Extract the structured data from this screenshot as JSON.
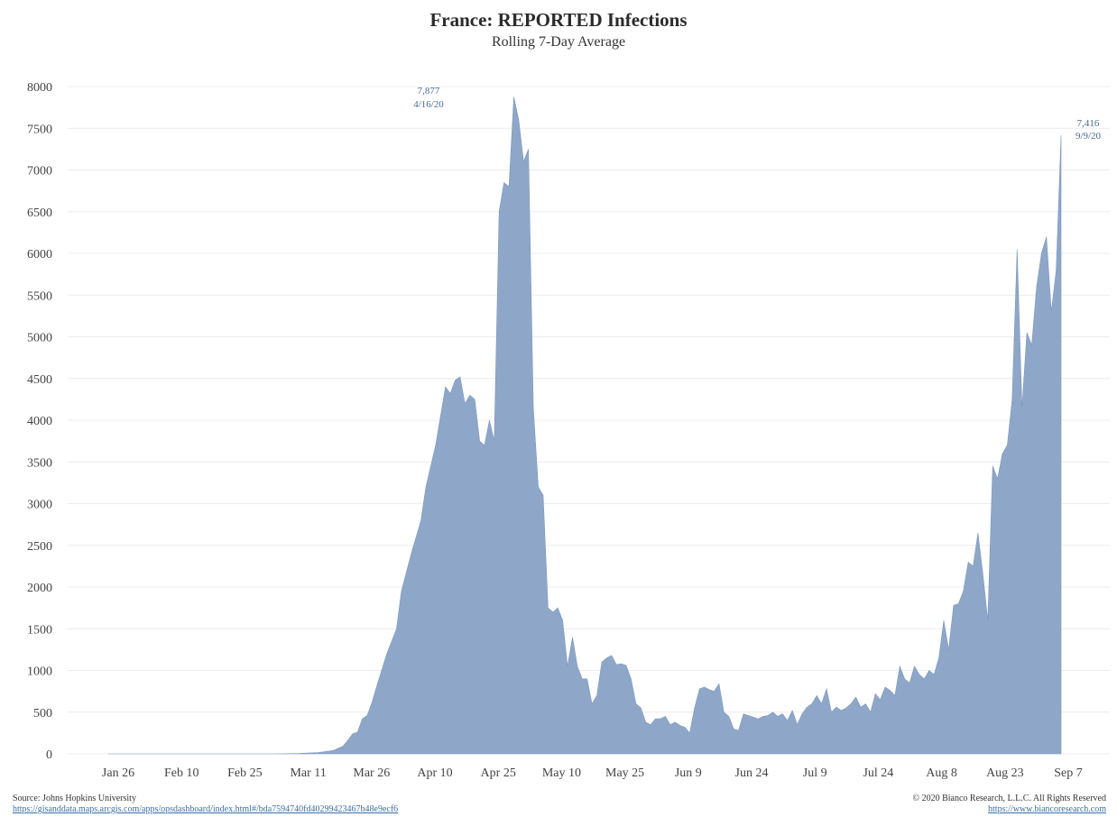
{
  "chart_data": {
    "type": "area",
    "title": "France: REPORTED Infections",
    "subtitle": "Rolling 7-Day Average",
    "xlabel": "",
    "ylabel": "",
    "ylim": [
      0,
      8000
    ],
    "yticks": [
      0,
      500,
      1000,
      1500,
      2000,
      2500,
      3000,
      3500,
      4000,
      4500,
      5000,
      5500,
      6000,
      6500,
      7000,
      7500,
      8000
    ],
    "xticks": [
      "Jan 26",
      "Feb 10",
      "Feb 25",
      "Mar 11",
      "Mar 26",
      "Apr 10",
      "Apr 25",
      "May 10",
      "May 25",
      "Jun 9",
      "Jun 24",
      "Jul 9",
      "Jul 24",
      "Aug 8",
      "Aug 23",
      "Sep 7"
    ],
    "grid": true,
    "fill_color": "#8ea7c9",
    "annotations": [
      {
        "value": "7,877",
        "date": "4/16/20"
      },
      {
        "value": "7,416",
        "date": "9/9/20"
      }
    ],
    "series": [
      {
        "values": [
          [
            1,
            0
          ],
          [
            35,
            0
          ],
          [
            40,
            5
          ],
          [
            44,
            15
          ],
          [
            47,
            40
          ],
          [
            49,
            90
          ],
          [
            50,
            160
          ],
          [
            51,
            240
          ],
          [
            52,
            260
          ],
          [
            53,
            420
          ],
          [
            54,
            460
          ],
          [
            55,
            620
          ],
          [
            56,
            820
          ],
          [
            58,
            1200
          ],
          [
            60,
            1500
          ],
          [
            61,
            1950
          ],
          [
            63,
            2400
          ],
          [
            65,
            2800
          ],
          [
            66,
            3200
          ],
          [
            68,
            3700
          ],
          [
            70,
            4400
          ],
          [
            71,
            4320
          ],
          [
            72,
            4480
          ],
          [
            73,
            4520
          ],
          [
            74,
            4200
          ],
          [
            75,
            4300
          ],
          [
            76,
            4250
          ],
          [
            77,
            3750
          ],
          [
            78,
            3700
          ],
          [
            79,
            4000
          ],
          [
            80,
            3750
          ],
          [
            81,
            6500
          ],
          [
            82,
            6850
          ],
          [
            83,
            6800
          ],
          [
            84,
            7877
          ],
          [
            85,
            7600
          ],
          [
            86,
            7100
          ],
          [
            87,
            7250
          ],
          [
            88,
            4150
          ],
          [
            89,
            3200
          ],
          [
            90,
            3100
          ],
          [
            91,
            1750
          ],
          [
            92,
            1700
          ],
          [
            93,
            1750
          ],
          [
            94,
            1600
          ],
          [
            95,
            1050
          ],
          [
            96,
            1400
          ],
          [
            97,
            1050
          ],
          [
            98,
            900
          ],
          [
            99,
            900
          ],
          [
            100,
            600
          ],
          [
            101,
            700
          ],
          [
            102,
            1100
          ],
          [
            103,
            1150
          ],
          [
            104,
            1180
          ],
          [
            105,
            1070
          ],
          [
            106,
            1080
          ],
          [
            107,
            1060
          ],
          [
            108,
            900
          ],
          [
            109,
            600
          ],
          [
            110,
            550
          ],
          [
            111,
            380
          ],
          [
            112,
            350
          ],
          [
            113,
            420
          ],
          [
            114,
            420
          ],
          [
            115,
            450
          ],
          [
            116,
            350
          ],
          [
            117,
            380
          ],
          [
            118,
            340
          ],
          [
            119,
            320
          ],
          [
            120,
            250
          ],
          [
            121,
            550
          ],
          [
            122,
            780
          ],
          [
            123,
            800
          ],
          [
            124,
            770
          ],
          [
            125,
            750
          ],
          [
            126,
            840
          ],
          [
            127,
            500
          ],
          [
            128,
            450
          ],
          [
            129,
            300
          ],
          [
            130,
            280
          ],
          [
            131,
            480
          ],
          [
            132,
            460
          ],
          [
            133,
            440
          ],
          [
            134,
            420
          ],
          [
            135,
            450
          ],
          [
            136,
            460
          ],
          [
            137,
            500
          ],
          [
            138,
            450
          ],
          [
            139,
            480
          ],
          [
            140,
            400
          ],
          [
            141,
            520
          ],
          [
            142,
            350
          ],
          [
            143,
            480
          ],
          [
            144,
            560
          ],
          [
            145,
            600
          ],
          [
            146,
            700
          ],
          [
            147,
            600
          ],
          [
            148,
            780
          ],
          [
            149,
            500
          ],
          [
            150,
            560
          ],
          [
            151,
            520
          ],
          [
            152,
            550
          ],
          [
            153,
            600
          ],
          [
            154,
            680
          ],
          [
            155,
            560
          ],
          [
            156,
            600
          ],
          [
            157,
            500
          ],
          [
            158,
            720
          ],
          [
            159,
            650
          ],
          [
            160,
            800
          ],
          [
            161,
            760
          ],
          [
            162,
            700
          ],
          [
            163,
            1050
          ],
          [
            164,
            900
          ],
          [
            165,
            850
          ],
          [
            166,
            1050
          ],
          [
            167,
            950
          ],
          [
            168,
            900
          ],
          [
            169,
            1000
          ],
          [
            170,
            950
          ],
          [
            171,
            1150
          ],
          [
            172,
            1600
          ],
          [
            173,
            1250
          ],
          [
            174,
            1780
          ],
          [
            175,
            1800
          ],
          [
            176,
            1950
          ],
          [
            177,
            2300
          ],
          [
            178,
            2250
          ],
          [
            179,
            2650
          ],
          [
            180,
            2150
          ],
          [
            181,
            1600
          ],
          [
            182,
            3450
          ],
          [
            183,
            3300
          ],
          [
            184,
            3600
          ],
          [
            185,
            3700
          ],
          [
            186,
            4250
          ],
          [
            187,
            6050
          ],
          [
            188,
            4150
          ],
          [
            189,
            5050
          ],
          [
            190,
            4900
          ],
          [
            191,
            5600
          ],
          [
            192,
            6000
          ],
          [
            193,
            6200
          ],
          [
            194,
            5300
          ],
          [
            195,
            5800
          ],
          [
            196,
            7416
          ]
        ]
      }
    ]
  },
  "footer": {
    "source_label": "Source: Johns Hopkins University",
    "source_url": "https://gisanddata.maps.arcgis.com/apps/opsdashboard/index.html#/bda7594740fd40299423467b48e9ecf6",
    "copyright": "© 2020 Bianco Research, L.L.C. All Rights Reserved",
    "site_url": "https://www.biancoresearch.com"
  }
}
